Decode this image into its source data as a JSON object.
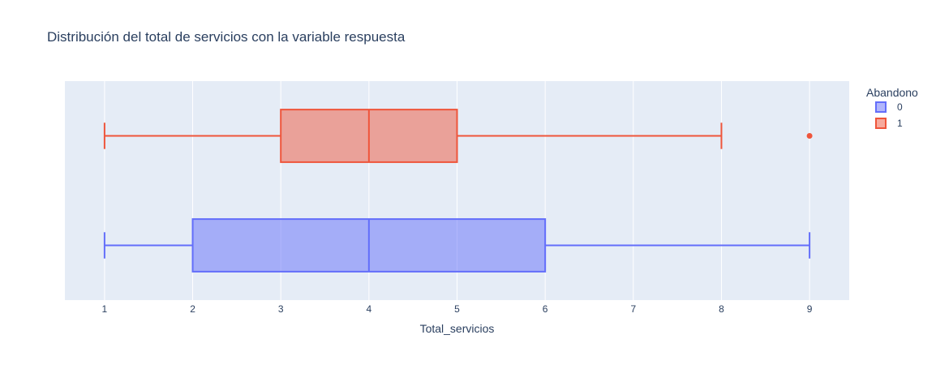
{
  "chart_data": {
    "type": "box",
    "title": "Distribución del total de servicios con la variable respuesta",
    "xlabel": "Total_servicios",
    "ylabel": "",
    "xlim": [
      0.55,
      9.45
    ],
    "x_ticks": [
      1,
      2,
      3,
      4,
      5,
      6,
      7,
      8,
      9
    ],
    "grid": true,
    "orientation": "horizontal",
    "legend": {
      "title": "Abandono",
      "placement": "top-right"
    },
    "series": [
      {
        "name": "0",
        "color": "#636efa",
        "fill": "rgba(99,110,250,0.5)",
        "min": 1,
        "q1": 2,
        "median": 4,
        "q3": 6,
        "max": 9,
        "outliers": []
      },
      {
        "name": "1",
        "color": "#ef553b",
        "fill": "rgba(239,85,59,0.5)",
        "min": 1,
        "q1": 3,
        "median": 4,
        "q3": 5,
        "max": 8,
        "outliers": [
          9
        ]
      }
    ]
  },
  "colors": {
    "plot_bg": "#e5ecf6",
    "grid": "#ffffff",
    "text": "#2a3f5f"
  }
}
